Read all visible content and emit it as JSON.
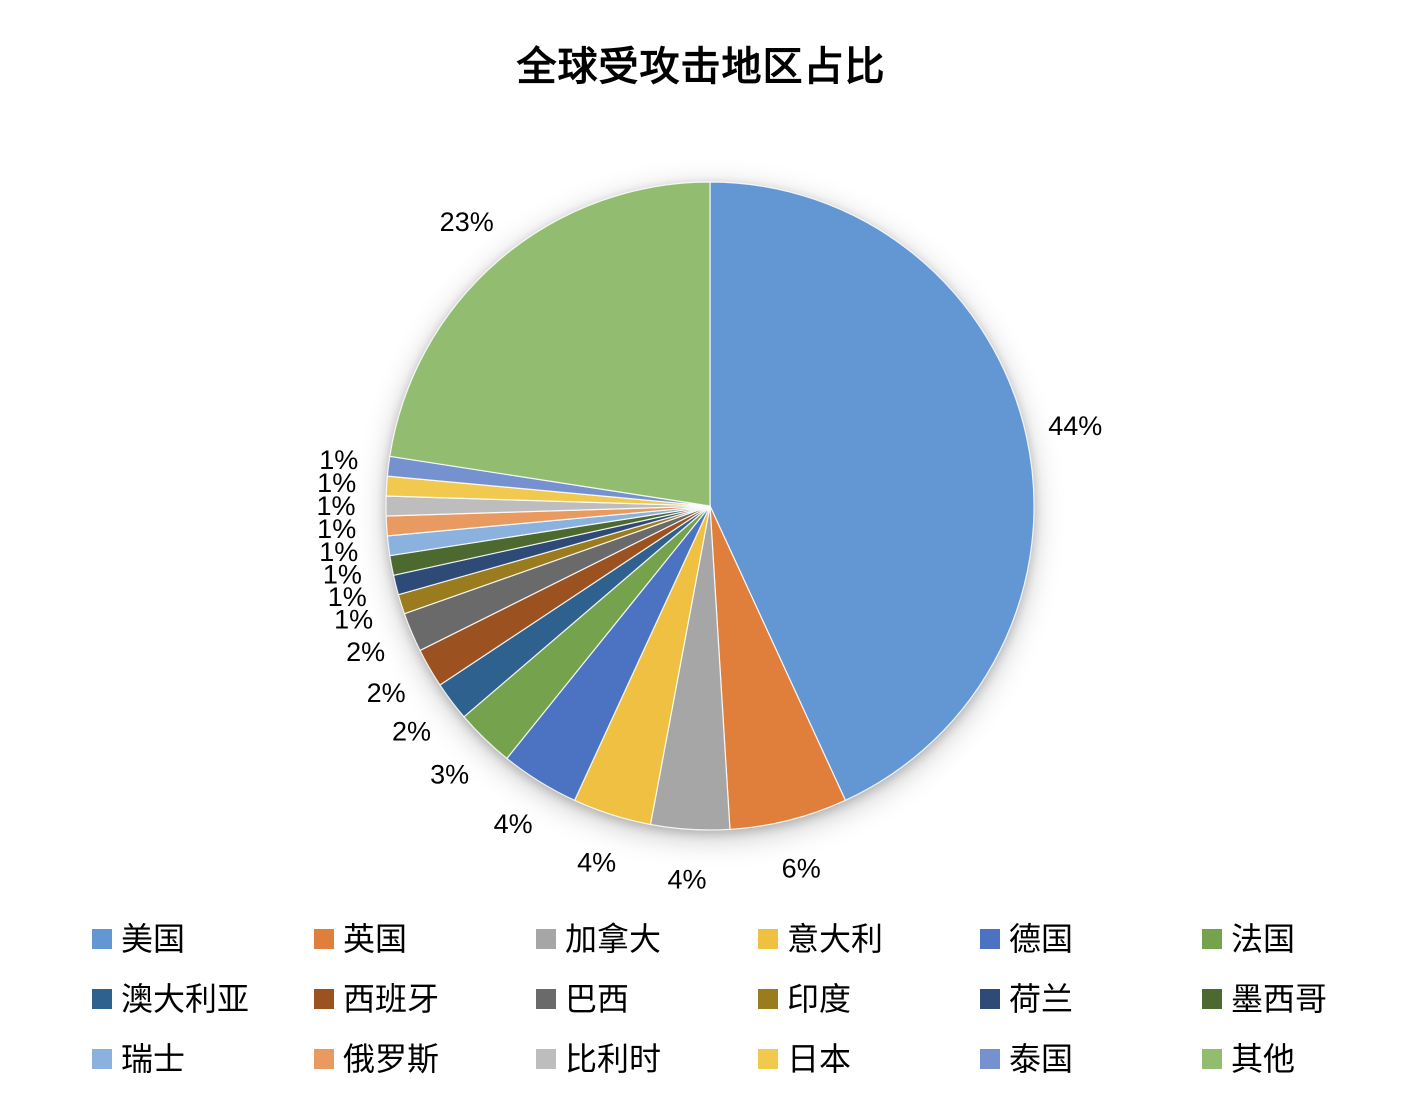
{
  "chart_data": {
    "type": "pie",
    "title": "全球受攻击地区占比",
    "unit": "%",
    "legend_position": "bottom",
    "direction": "clockwise",
    "start_angle_deg": 0,
    "slices": [
      {
        "key": "usa",
        "label": "美国",
        "value": 44,
        "display": "44%",
        "color": "#6297D4"
      },
      {
        "key": "uk",
        "label": "英国",
        "value": 6,
        "display": "6%",
        "color": "#E07F3B"
      },
      {
        "key": "canada",
        "label": "加拿大",
        "value": 4,
        "display": "4%",
        "color": "#A6A6A6"
      },
      {
        "key": "italy",
        "label": "意大利",
        "value": 4,
        "display": "4%",
        "color": "#EFC041"
      },
      {
        "key": "germany",
        "label": "德国",
        "value": 4,
        "display": "4%",
        "color": "#4C73C2"
      },
      {
        "key": "france",
        "label": "法国",
        "value": 3,
        "display": "3%",
        "color": "#74A24D"
      },
      {
        "key": "australia",
        "label": "澳大利亚",
        "value": 2,
        "display": "2%",
        "color": "#2F618E"
      },
      {
        "key": "spain",
        "label": "西班牙",
        "value": 2,
        "display": "2%",
        "color": "#9C5120"
      },
      {
        "key": "brazil",
        "label": "巴西",
        "value": 2,
        "display": "2%",
        "color": "#6A6A6A"
      },
      {
        "key": "india",
        "label": "印度",
        "value": 1,
        "display": "1%",
        "color": "#9A7B1E"
      },
      {
        "key": "netherlands",
        "label": "荷兰",
        "value": 1,
        "display": "1%",
        "color": "#2E4B78"
      },
      {
        "key": "mexico",
        "label": "墨西哥",
        "value": 1,
        "display": "1%",
        "color": "#4C6A2F"
      },
      {
        "key": "switzerland",
        "label": "瑞士",
        "value": 1,
        "display": "1%",
        "color": "#8BB2DE"
      },
      {
        "key": "russia",
        "label": "俄罗斯",
        "value": 1,
        "display": "1%",
        "color": "#E99A61"
      },
      {
        "key": "belgium",
        "label": "比利时",
        "value": 1,
        "display": "1%",
        "color": "#BDBDBD"
      },
      {
        "key": "japan",
        "label": "日本",
        "value": 1,
        "display": "1%",
        "color": "#F1C94F"
      },
      {
        "key": "thailand",
        "label": "泰国",
        "value": 1,
        "display": "1%",
        "color": "#7591CF"
      },
      {
        "key": "other",
        "label": "其他",
        "value": 23,
        "display": "23%",
        "color": "#92BD70"
      }
    ]
  }
}
